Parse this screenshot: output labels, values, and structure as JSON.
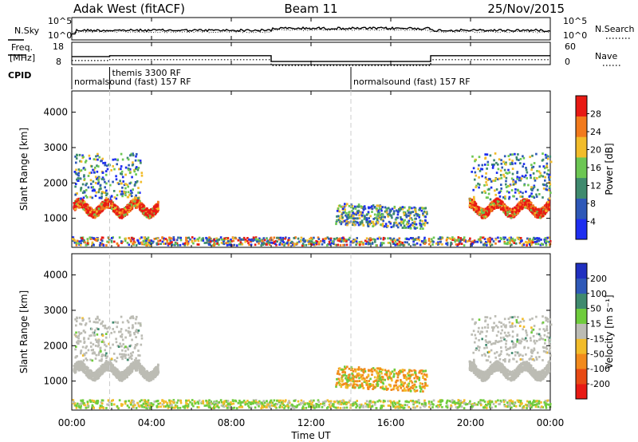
{
  "chart_data": {
    "type": "heatmap",
    "header": {
      "radar": "Adak West (fitACF)",
      "beam": "Beam 11",
      "date": "25/Nov/2015"
    },
    "noise_panel": {
      "left_label": "N.Sky",
      "right_label": "N.Search",
      "left_ticks": [
        "10^5",
        "10^0"
      ],
      "right_ticks": [
        "10^5",
        "10^0"
      ]
    },
    "freq_panel": {
      "left_label_1": "Freq.",
      "left_label_2": "[MHz]",
      "right_label": "Nave",
      "left_ticks": [
        18,
        8
      ],
      "right_ticks": [
        60,
        0
      ],
      "freq_steps": [
        {
          "start_h": 0,
          "end_h": 1.9,
          "value": 11.6
        },
        {
          "start_h": 1.9,
          "end_h": 10.0,
          "value": 12.0
        },
        {
          "start_h": 10.0,
          "end_h": 18.0,
          "value": 9.4
        },
        {
          "start_h": 18.0,
          "end_h": 24.0,
          "value": 12.0
        }
      ]
    },
    "cpid": {
      "label": "CPID",
      "segments": [
        {
          "start_h": 0,
          "text": "normalsound (fast) 157 RF"
        },
        {
          "start_h": 1.9,
          "text": "themis 3300 RF"
        },
        {
          "start_h": 14.0,
          "text": "normalsound (fast) 157 RF"
        }
      ]
    },
    "x_axis": {
      "label": "Time UT",
      "ticks": [
        "00:00",
        "04:00",
        "08:00",
        "12:00",
        "16:00",
        "20:00",
        "00:00"
      ],
      "range_h": [
        0,
        24
      ]
    },
    "y_axis": {
      "label": "Slant Range [km]",
      "ticks": [
        1000,
        2000,
        3000,
        4000
      ],
      "range": [
        180,
        4600
      ]
    },
    "power_panel": {
      "colorbar_label": "Power [dB]",
      "colorbar_ticks": [
        4,
        8,
        12,
        16,
        20,
        24,
        28
      ],
      "colorbar_range": [
        0,
        30
      ],
      "colors": [
        "#1e2ef0",
        "#2e58b8",
        "#3f8a6e",
        "#6cc653",
        "#f2bc2a",
        "#f27a1c",
        "#e81a14"
      ]
    },
    "velocity_panel": {
      "colorbar_label": "Velocity [m s⁻¹]",
      "colorbar_ticks": [
        "200",
        "100",
        "50",
        "15",
        "-15",
        "-50",
        "-100",
        "-200"
      ],
      "colors": [
        "#2030c0",
        "#2f59b8",
        "#3f8a6e",
        "#6fcc3c",
        "#bcbcb4",
        "#f2bc2a",
        "#f28a1c",
        "#e84a14",
        "#e81a14"
      ]
    }
  }
}
